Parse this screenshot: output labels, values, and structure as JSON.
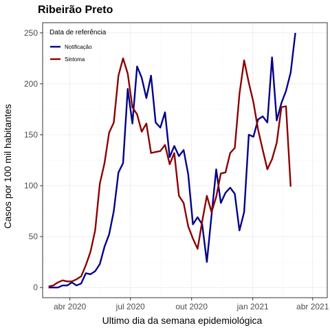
{
  "chart_data": {
    "type": "line",
    "title": "Ribeirão Preto",
    "xlabel": "Ultimo dia da semana epidemiológica",
    "ylabel": "Casos por 100 mil habitantes",
    "legend": {
      "title": "Data de referência",
      "position": "top-left"
    },
    "x_range": [
      "2020-02-20",
      "2021-04-23"
    ],
    "x_ticks": [
      {
        "date": "2020-04-01",
        "label": "abr 2020"
      },
      {
        "date": "2020-07-01",
        "label": "jul 2020"
      },
      {
        "date": "2020-10-01",
        "label": "out 2020"
      },
      {
        "date": "2021-01-01",
        "label": "jan 2021"
      },
      {
        "date": "2021-04-01",
        "label": "abr 2021"
      }
    ],
    "ylim": [
      -10,
      260
    ],
    "y_ticks": [
      0,
      50,
      100,
      150,
      200,
      250
    ],
    "grid": true,
    "series": [
      {
        "name": "Notificação",
        "color": "#00008b",
        "points": [
          [
            "2020-02-29",
            0
          ],
          [
            "2020-03-07",
            0
          ],
          [
            "2020-03-14",
            0
          ],
          [
            "2020-03-21",
            2
          ],
          [
            "2020-03-28",
            2
          ],
          [
            "2020-04-04",
            5
          ],
          [
            "2020-04-11",
            2
          ],
          [
            "2020-04-18",
            4
          ],
          [
            "2020-04-25",
            14
          ],
          [
            "2020-05-02",
            13
          ],
          [
            "2020-05-09",
            16
          ],
          [
            "2020-05-16",
            23
          ],
          [
            "2020-05-23",
            40
          ],
          [
            "2020-05-30",
            52
          ],
          [
            "2020-06-06",
            75
          ],
          [
            "2020-06-13",
            113
          ],
          [
            "2020-06-20",
            122
          ],
          [
            "2020-06-27",
            195
          ],
          [
            "2020-07-04",
            161
          ],
          [
            "2020-07-11",
            217
          ],
          [
            "2020-07-18",
            206
          ],
          [
            "2020-07-25",
            186
          ],
          [
            "2020-08-01",
            208
          ],
          [
            "2020-08-08",
            162
          ],
          [
            "2020-08-15",
            157
          ],
          [
            "2020-08-22",
            172
          ],
          [
            "2020-08-29",
            128
          ],
          [
            "2020-09-05",
            139
          ],
          [
            "2020-09-12",
            129
          ],
          [
            "2020-09-19",
            135
          ],
          [
            "2020-09-26",
            111
          ],
          [
            "2020-10-03",
            62
          ],
          [
            "2020-10-10",
            69
          ],
          [
            "2020-10-17",
            62
          ],
          [
            "2020-10-24",
            25
          ],
          [
            "2020-10-31",
            71
          ],
          [
            "2020-11-07",
            116
          ],
          [
            "2020-11-14",
            83
          ],
          [
            "2020-11-21",
            93
          ],
          [
            "2020-11-28",
            98
          ],
          [
            "2020-12-05",
            92
          ],
          [
            "2020-12-12",
            56
          ],
          [
            "2020-12-19",
            74
          ],
          [
            "2020-12-26",
            150
          ],
          [
            "2021-01-02",
            148
          ],
          [
            "2021-01-09",
            165
          ],
          [
            "2021-01-16",
            168
          ],
          [
            "2021-01-23",
            162
          ],
          [
            "2021-01-30",
            226
          ],
          [
            "2021-02-06",
            164
          ],
          [
            "2021-02-13",
            181
          ],
          [
            "2021-02-20",
            193
          ],
          [
            "2021-02-27",
            211
          ],
          [
            "2021-03-06",
            250
          ]
        ]
      },
      {
        "name": "Sintoma",
        "color": "#8b0000",
        "points": [
          [
            "2020-02-29",
            1
          ],
          [
            "2020-03-07",
            2
          ],
          [
            "2020-03-14",
            5
          ],
          [
            "2020-03-21",
            7
          ],
          [
            "2020-03-28",
            6
          ],
          [
            "2020-04-04",
            6
          ],
          [
            "2020-04-11",
            8
          ],
          [
            "2020-04-18",
            11
          ],
          [
            "2020-04-25",
            22
          ],
          [
            "2020-05-02",
            35
          ],
          [
            "2020-05-09",
            56
          ],
          [
            "2020-05-16",
            102
          ],
          [
            "2020-05-23",
            122
          ],
          [
            "2020-05-30",
            152
          ],
          [
            "2020-06-06",
            162
          ],
          [
            "2020-06-13",
            208
          ],
          [
            "2020-06-20",
            225
          ],
          [
            "2020-06-27",
            210
          ],
          [
            "2020-07-04",
            177
          ],
          [
            "2020-07-11",
            170
          ],
          [
            "2020-07-18",
            153
          ],
          [
            "2020-07-25",
            161
          ],
          [
            "2020-08-01",
            132
          ],
          [
            "2020-08-08",
            133
          ],
          [
            "2020-08-15",
            134
          ],
          [
            "2020-08-22",
            140
          ],
          [
            "2020-08-29",
            121
          ],
          [
            "2020-09-05",
            132
          ],
          [
            "2020-09-12",
            90
          ],
          [
            "2020-09-19",
            83
          ],
          [
            "2020-09-26",
            60
          ],
          [
            "2020-10-03",
            48
          ],
          [
            "2020-10-10",
            38
          ],
          [
            "2020-10-17",
            65
          ],
          [
            "2020-10-24",
            90
          ],
          [
            "2020-10-31",
            74
          ],
          [
            "2020-11-07",
            89
          ],
          [
            "2020-11-14",
            112
          ],
          [
            "2020-11-21",
            113
          ],
          [
            "2020-11-28",
            132
          ],
          [
            "2020-12-05",
            137
          ],
          [
            "2020-12-12",
            190
          ],
          [
            "2020-12-19",
            223
          ],
          [
            "2020-12-26",
            201
          ],
          [
            "2021-01-02",
            182
          ],
          [
            "2021-01-09",
            155
          ],
          [
            "2021-01-16",
            135
          ],
          [
            "2021-01-23",
            116
          ],
          [
            "2021-01-30",
            126
          ],
          [
            "2021-02-06",
            142
          ],
          [
            "2021-02-13",
            177
          ],
          [
            "2021-02-20",
            178
          ],
          [
            "2021-02-27",
            99
          ]
        ]
      }
    ]
  }
}
